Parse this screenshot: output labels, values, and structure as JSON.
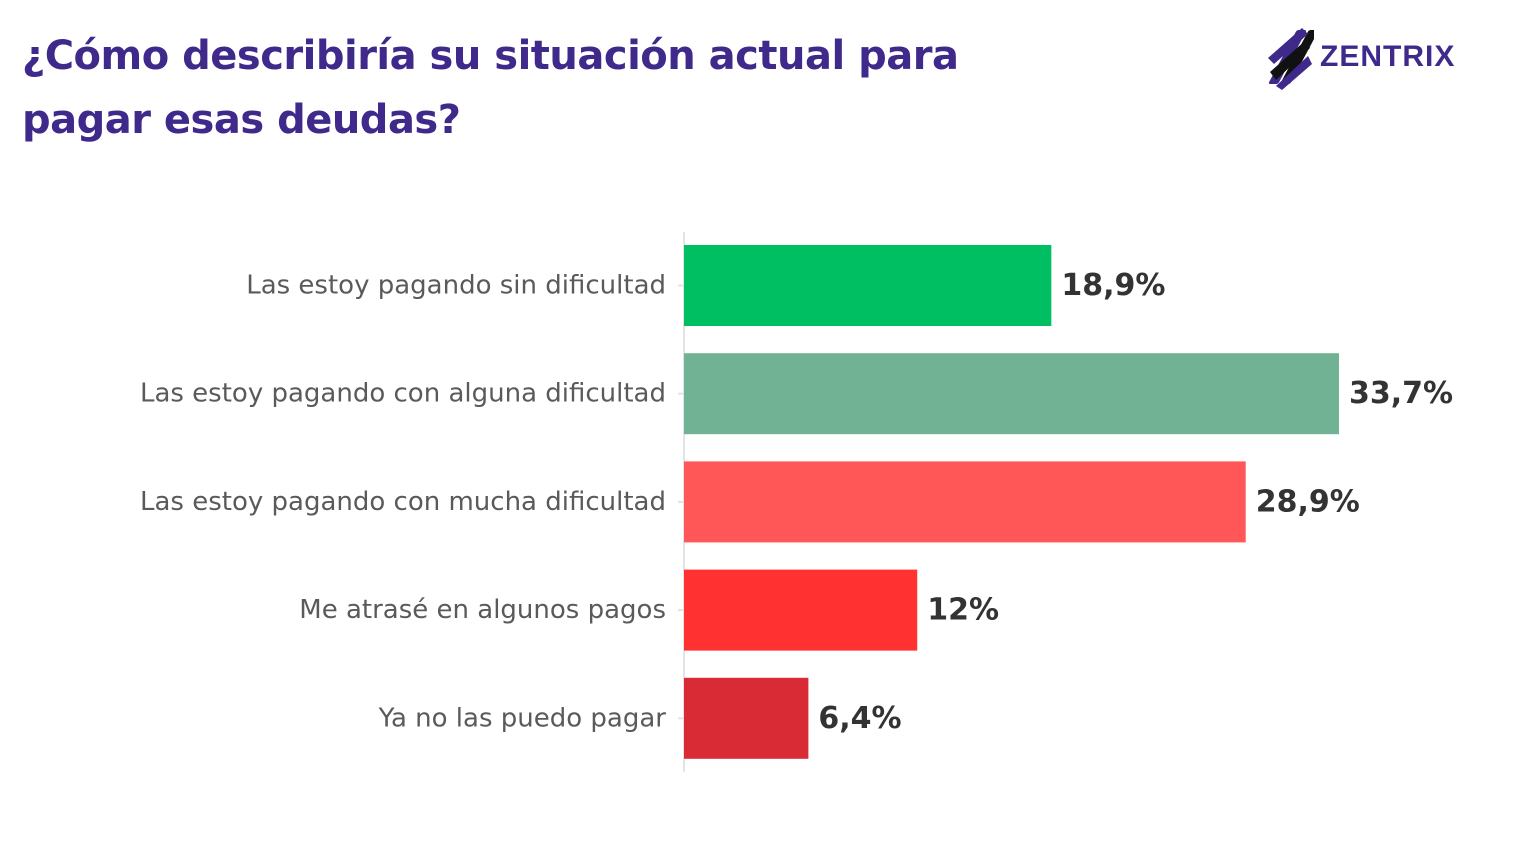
{
  "title": "¿Cómo describiría su situación actual para pagar esas deudas?",
  "logo": {
    "text": "ZENTRIX",
    "icon": "zentrix-stripes-icon"
  },
  "colors": {
    "title": "#3f2a8c",
    "logo_mark": "#3f2a8c",
    "axis": "#e4e4e4",
    "category_text": "#5a5a5a",
    "value_text": "#333333"
  },
  "chart_data": {
    "type": "bar",
    "orientation": "horizontal",
    "categories": [
      "Las estoy pagando sin dificultad",
      "Las estoy pagando con alguna dificultad",
      "Las estoy pagando con mucha dificultad",
      "Me atrasé en algunos pagos",
      "Ya no las puedo pagar"
    ],
    "values": [
      18.9,
      33.7,
      28.9,
      12,
      6.4
    ],
    "value_labels": [
      "18,9%",
      "33,7%",
      "28,9%",
      "12%",
      "6,4%"
    ],
    "bar_colors": [
      "#00bf63",
      "#72b294",
      "#ff5757",
      "#ff3131",
      "#d92b35"
    ],
    "xlim": [
      0,
      40
    ],
    "grid": false,
    "legend": "none"
  }
}
